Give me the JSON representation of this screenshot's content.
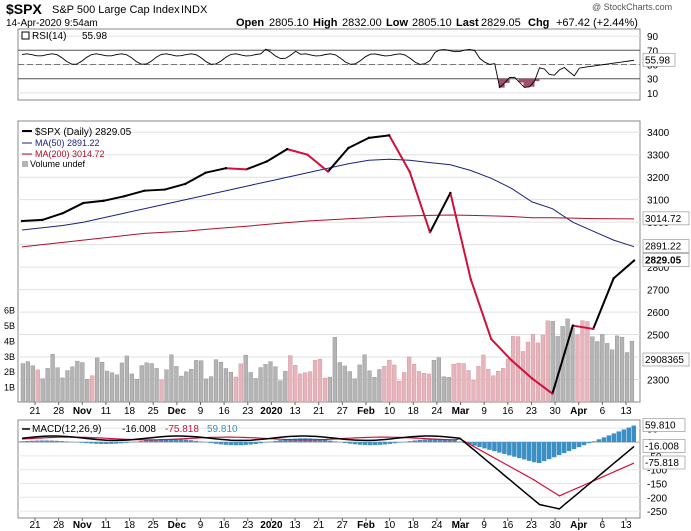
{
  "header": {
    "symbol": "$SPX",
    "name": "S&P 500 Large Cap Index",
    "exchange": "INDX",
    "datetime": "14-Apr-2020 9:54am",
    "watermark": "@ StockCharts.com",
    "open_label": "Open",
    "open": "2805.10",
    "high_label": "High",
    "high": "2832.00",
    "low_label": "Low",
    "low": "2805.10",
    "last_label": "Last",
    "last": "2829.05",
    "chg_label": "Chg",
    "chg": "+67.42 (+2.44%)"
  },
  "rsi": {
    "label": "RSI(14)",
    "value": "55.98",
    "levels": [
      90,
      70,
      50,
      30,
      10
    ],
    "overbought": 70,
    "oversold": 30
  },
  "main_legend": {
    "price": "$SPX (Daily) 2829.05",
    "ma50": "MA(50) 2891.22",
    "ma200": "MA(200) 3014.72",
    "volume": "Volume undef"
  },
  "price_axis": {
    "ticks": [
      "3400",
      "3300",
      "3200",
      "3100",
      "3000",
      "2900",
      "2800",
      "2700",
      "2600",
      "2500",
      "2400",
      "2300"
    ],
    "ma200_tag": "3014.72",
    "ma50_tag": "2891.22",
    "last_tag": "2829.05",
    "vol_tag": "2908365"
  },
  "volume_axis": [
    "6B",
    "5B",
    "4B",
    "3B",
    "2B",
    "1B"
  ],
  "macd": {
    "label": "MACD(12,26,9)",
    "macd": "-16.008",
    "signal": "-75.818",
    "hist": "59.810",
    "ticks": [
      "50",
      "0",
      "-50",
      "-100",
      "-150",
      "-200",
      "-250"
    ],
    "tag_hist": "59.810",
    "tag_macd": "-16.008",
    "tag_signal": "-75.818"
  },
  "x_axis": [
    {
      "label": "21",
      "bold": false
    },
    {
      "label": "28",
      "bold": false
    },
    {
      "label": "Nov",
      "bold": true
    },
    {
      "label": "11",
      "bold": false
    },
    {
      "label": "18",
      "bold": false
    },
    {
      "label": "25",
      "bold": false
    },
    {
      "label": "Dec",
      "bold": true
    },
    {
      "label": "9",
      "bold": false
    },
    {
      "label": "16",
      "bold": false
    },
    {
      "label": "23",
      "bold": false
    },
    {
      "label": "2020",
      "bold": true
    },
    {
      "label": "13",
      "bold": false
    },
    {
      "label": "21",
      "bold": false
    },
    {
      "label": "27",
      "bold": false
    },
    {
      "label": "Feb",
      "bold": true
    },
    {
      "label": "10",
      "bold": false
    },
    {
      "label": "18",
      "bold": false
    },
    {
      "label": "24",
      "bold": false
    },
    {
      "label": "Mar",
      "bold": true
    },
    {
      "label": "9",
      "bold": false
    },
    {
      "label": "16",
      "bold": false
    },
    {
      "label": "23",
      "bold": false
    },
    {
      "label": "30",
      "bold": false
    },
    {
      "label": "Apr",
      "bold": true
    },
    {
      "label": "6",
      "bold": false
    },
    {
      "label": "13",
      "bold": false
    }
  ],
  "colors": {
    "ma50": "#1a237e",
    "ma200": "#b0102a",
    "up": "#000000",
    "down": "#d0103a",
    "rsi_fill": "#4e7a3e",
    "rsi_fill_low": "#a0506a",
    "hist": "#3b8fc4",
    "vol_up": "#b4b4b4",
    "vol_down": "#e8b4bc"
  },
  "chart_data": {
    "type": "line",
    "x": [
      "2019-10-17",
      "2019-10-24",
      "2019-10-31",
      "2019-11-07",
      "2019-11-14",
      "2019-11-21",
      "2019-11-29",
      "2019-12-06",
      "2019-12-13",
      "2019-12-20",
      "2019-12-27",
      "2020-01-03",
      "2020-01-10",
      "2020-01-17",
      "2020-01-24",
      "2020-01-31",
      "2020-02-07",
      "2020-02-14",
      "2020-02-19",
      "2020-02-24",
      "2020-02-28",
      "2020-03-04",
      "2020-03-09",
      "2020-03-12",
      "2020-03-16",
      "2020-03-20",
      "2020-03-23",
      "2020-03-27",
      "2020-04-02",
      "2020-04-08",
      "2020-04-14"
    ],
    "series": [
      {
        "name": "$SPX (Daily)",
        "values": [
          3005,
          3010,
          3040,
          3085,
          3095,
          3115,
          3140,
          3145,
          3170,
          3220,
          3240,
          3235,
          3270,
          3325,
          3300,
          3225,
          3330,
          3375,
          3386,
          3225,
          2955,
          3130,
          2745,
          2480,
          2385,
          2305,
          2237,
          2540,
          2525,
          2750,
          2829
        ]
      },
      {
        "name": "MA(50)",
        "values": [
          2965,
          2975,
          2985,
          3000,
          3020,
          3040,
          3060,
          3080,
          3100,
          3120,
          3140,
          3160,
          3180,
          3200,
          3220,
          3240,
          3260,
          3275,
          3280,
          3275,
          3265,
          3255,
          3230,
          3195,
          3150,
          3090,
          3060,
          3000,
          2960,
          2920,
          2891
        ]
      },
      {
        "name": "MA(200)",
        "values": [
          2890,
          2900,
          2910,
          2920,
          2930,
          2940,
          2950,
          2955,
          2960,
          2968,
          2975,
          2982,
          2990,
          2998,
          3005,
          3010,
          3015,
          3020,
          3025,
          3028,
          3030,
          3032,
          3030,
          3028,
          3025,
          3020,
          3020,
          3018,
          3016,
          3015,
          3014.72
        ]
      }
    ],
    "ylim": [
      2200,
      3450
    ]
  }
}
